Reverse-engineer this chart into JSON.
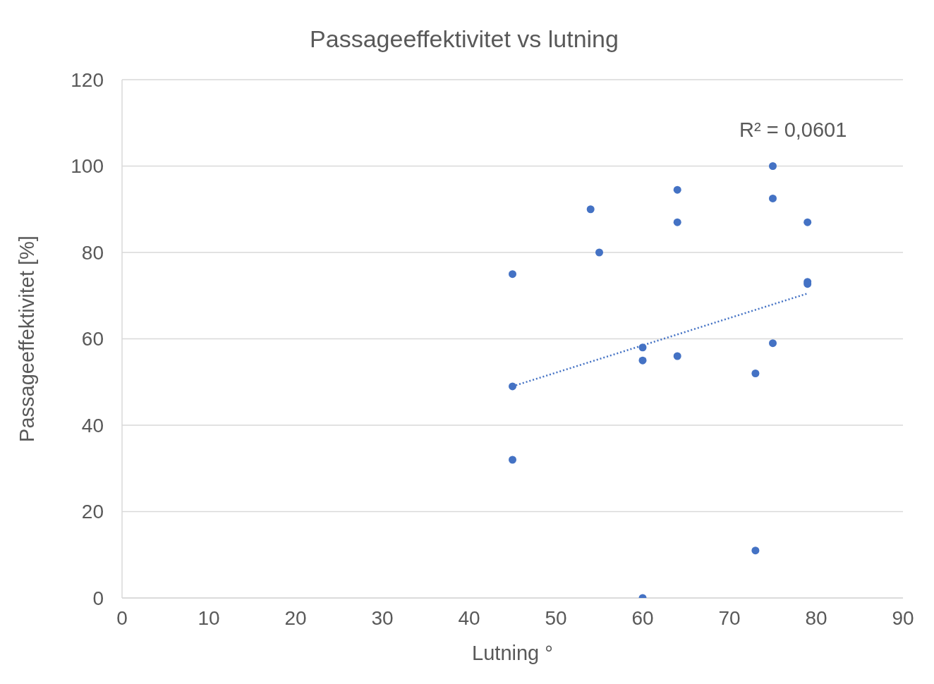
{
  "chart_data": {
    "type": "scatter",
    "title": "Passageeffektivitet vs lutning",
    "xlabel": "Lutning °",
    "ylabel": "Passageeffektivitet [%]",
    "xlim": [
      0,
      90
    ],
    "xticks": [
      0,
      10,
      20,
      30,
      40,
      50,
      60,
      70,
      80,
      90
    ],
    "ylim": [
      0,
      120
    ],
    "yticks": [
      0,
      20,
      40,
      60,
      80,
      100,
      120
    ],
    "grid": "y",
    "annotations": [
      "R² = 0,0601"
    ],
    "series": [
      {
        "type": "scatter",
        "color": "#4472c4",
        "marker": "circle",
        "x": [
          45,
          45,
          45,
          54,
          55,
          60,
          60,
          60,
          64,
          64,
          64,
          73,
          73,
          75,
          75,
          75,
          79,
          79,
          79
        ],
        "values": [
          75,
          49,
          32,
          90,
          80,
          58,
          55,
          0,
          94.5,
          87,
          56,
          52,
          11,
          100,
          92.5,
          59,
          87,
          73.2,
          72.7
        ]
      },
      {
        "type": "line",
        "color": "#4472c4",
        "marker": "none",
        "line_style": "dotted",
        "x": [
          45,
          79
        ],
        "values": [
          49,
          70.5
        ]
      }
    ]
  }
}
